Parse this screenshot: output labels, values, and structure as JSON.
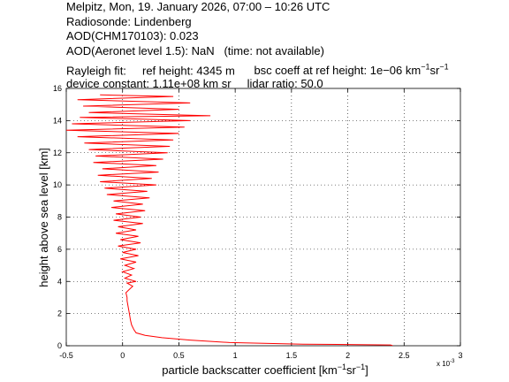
{
  "header": {
    "line1": "Melpitz, Mon, 19. January 2026, 07:00 – 10:26 UTC",
    "line2": "Radiosonde: Lindenberg",
    "line3": "AOD(CHM170103): 0.023",
    "line4a": "AOD(Aeronet level 1.5): NaN",
    "line4b": "(time: not available)",
    "rayleigh_label": "Rayleigh fit:",
    "ref_height": "ref height: 4345 m",
    "bsc_coeff_prefix": "bsc coeff at ref height: 1e−06 km",
    "device_constant": "device constant: 1.11e+08 km sr",
    "lidar_ratio": "lidar ratio: 50.0"
  },
  "chart_data": {
    "type": "line",
    "xlabel_prefix": "particle backscatter coefficient [km",
    "ylabel": "height above sea level [km]",
    "x_multiplier_label": "x 10",
    "x_multiplier_exp": "-3",
    "xlim": [
      -0.5,
      3
    ],
    "ylim": [
      0,
      16
    ],
    "xticks": [
      "-0.5",
      "0",
      "0.5",
      "1",
      "1.5",
      "2",
      "2.5",
      "3"
    ],
    "yticks": [
      "0",
      "2",
      "4",
      "6",
      "8",
      "10",
      "12",
      "14",
      "16"
    ],
    "grid": true,
    "line_color": "#ff0000",
    "series": [
      {
        "points": [
          [
            2.4,
            0.0
          ],
          [
            2.38,
            0.05
          ],
          [
            1.6,
            0.1
          ],
          [
            0.95,
            0.2
          ],
          [
            0.6,
            0.35
          ],
          [
            0.35,
            0.5
          ],
          [
            0.2,
            0.65
          ],
          [
            0.12,
            0.8
          ],
          [
            0.1,
            1.0
          ],
          [
            0.08,
            1.3
          ],
          [
            0.07,
            1.6
          ],
          [
            0.06,
            2.0
          ],
          [
            0.05,
            2.4
          ],
          [
            0.04,
            2.8
          ],
          [
            0.04,
            3.0
          ],
          [
            0.03,
            3.3
          ],
          [
            0.06,
            3.5
          ],
          [
            0.09,
            3.7
          ],
          [
            0.04,
            3.9
          ],
          [
            0.12,
            4.0
          ],
          [
            0.02,
            4.2
          ],
          [
            0.08,
            4.4
          ],
          [
            0.0,
            4.6
          ],
          [
            0.1,
            4.8
          ],
          [
            0.02,
            5.0
          ],
          [
            0.12,
            5.2
          ],
          [
            -0.02,
            5.4
          ],
          [
            0.14,
            5.6
          ],
          [
            0.0,
            5.8
          ],
          [
            0.12,
            6.0
          ],
          [
            -0.04,
            6.2
          ],
          [
            0.16,
            6.4
          ],
          [
            -0.02,
            6.6
          ],
          [
            0.14,
            6.8
          ],
          [
            -0.06,
            7.0
          ],
          [
            0.12,
            7.2
          ],
          [
            -0.04,
            7.4
          ],
          [
            0.18,
            7.6
          ],
          [
            -0.08,
            7.8
          ],
          [
            0.16,
            8.0
          ],
          [
            -0.06,
            8.2
          ],
          [
            0.2,
            8.4
          ],
          [
            -0.1,
            8.6
          ],
          [
            0.18,
            8.8
          ],
          [
            -0.08,
            9.0
          ],
          [
            0.24,
            9.2
          ],
          [
            -0.14,
            9.4
          ],
          [
            0.22,
            9.6
          ],
          [
            -0.16,
            9.8
          ],
          [
            0.3,
            10.0
          ],
          [
            -0.2,
            10.2
          ],
          [
            0.26,
            10.4
          ],
          [
            -0.22,
            10.6
          ],
          [
            0.32,
            10.8
          ],
          [
            -0.18,
            11.0
          ],
          [
            0.3,
            11.2
          ],
          [
            -0.26,
            11.4
          ],
          [
            0.36,
            11.6
          ],
          [
            -0.24,
            11.8
          ],
          [
            0.4,
            12.0
          ],
          [
            -0.3,
            12.2
          ],
          [
            0.42,
            12.4
          ],
          [
            -0.34,
            12.6
          ],
          [
            0.45,
            12.8
          ],
          [
            -0.4,
            13.0
          ],
          [
            0.5,
            13.2
          ],
          [
            -0.5,
            13.4
          ],
          [
            0.55,
            13.6
          ],
          [
            -0.45,
            13.8
          ],
          [
            0.6,
            14.0
          ],
          [
            -0.38,
            14.2
          ],
          [
            0.78,
            14.3
          ],
          [
            -0.3,
            14.5
          ],
          [
            0.5,
            14.7
          ],
          [
            -0.35,
            14.9
          ],
          [
            0.6,
            15.1
          ],
          [
            -0.4,
            15.3
          ],
          [
            0.45,
            15.5
          ],
          [
            -0.2,
            15.6
          ]
        ]
      }
    ]
  }
}
